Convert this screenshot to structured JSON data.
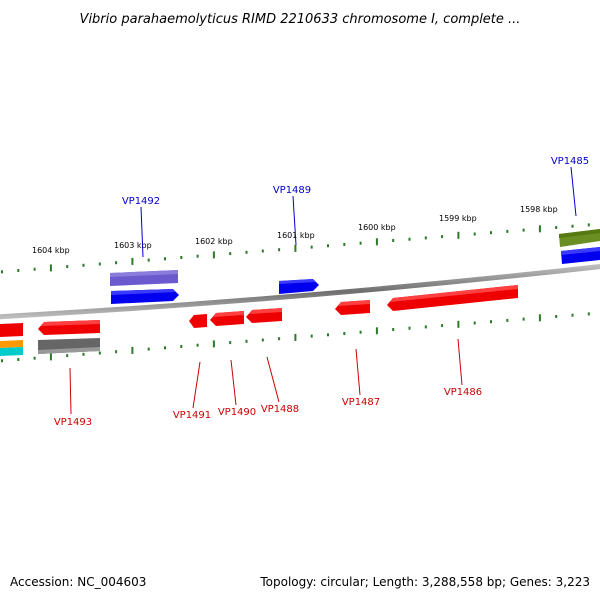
{
  "title": "Vibrio parahaemolyticus RIMD 2210633 chromosome I, complete ...",
  "footer": {
    "accession": "Accession: NC_004603",
    "summary": "Topology: circular; Length: 3,288,558 bp; Genes: 3,223"
  },
  "colors": {
    "forward_label": "#0000cc",
    "reverse_label": "#cc0000",
    "backbone": "#888888",
    "tick": "#2a7a2a"
  },
  "ticks": [
    {
      "label": "1604 kbp"
    },
    {
      "label": "1603 kbp"
    },
    {
      "label": "1602 kbp"
    },
    {
      "label": "1601 kbp"
    },
    {
      "label": "1600 kbp"
    },
    {
      "label": "1599 kbp"
    },
    {
      "label": "1598 kbp"
    }
  ],
  "forward_labels": [
    {
      "id": "VP1492"
    },
    {
      "id": "VP1489"
    },
    {
      "id": "VP1485"
    }
  ],
  "reverse_labels": [
    {
      "id": "VP1493"
    },
    {
      "id": "VP1491"
    },
    {
      "id": "VP1490"
    },
    {
      "id": "VP1488"
    },
    {
      "id": "VP1487"
    },
    {
      "id": "VP1486"
    }
  ]
}
